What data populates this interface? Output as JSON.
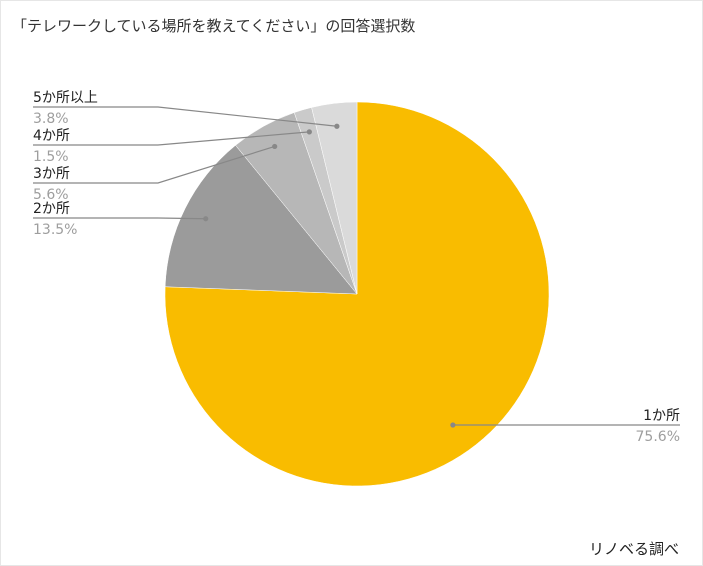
{
  "title": "「テレワークしている場所を教えてください」の回答選択数",
  "footer": "リノベる調べ",
  "chart_data": {
    "type": "pie",
    "title": "「テレワークしている場所を教えてください」の回答選択数",
    "slices": [
      {
        "label": "1か所",
        "value": 75.6,
        "value_label": "75.6%",
        "color": "#f9bc00"
      },
      {
        "label": "2か所",
        "value": 13.5,
        "value_label": "13.5%",
        "color": "#9b9b9b"
      },
      {
        "label": "3か所",
        "value": 5.6,
        "value_label": "5.6%",
        "color": "#b7b7b7"
      },
      {
        "label": "4か所",
        "value": 1.5,
        "value_label": "1.5%",
        "color": "#cacaca"
      },
      {
        "label": "5か所以上",
        "value": 3.8,
        "value_label": "3.8%",
        "color": "#dadada"
      }
    ],
    "legend": "none",
    "labels": "outside-with-leader-lines"
  }
}
